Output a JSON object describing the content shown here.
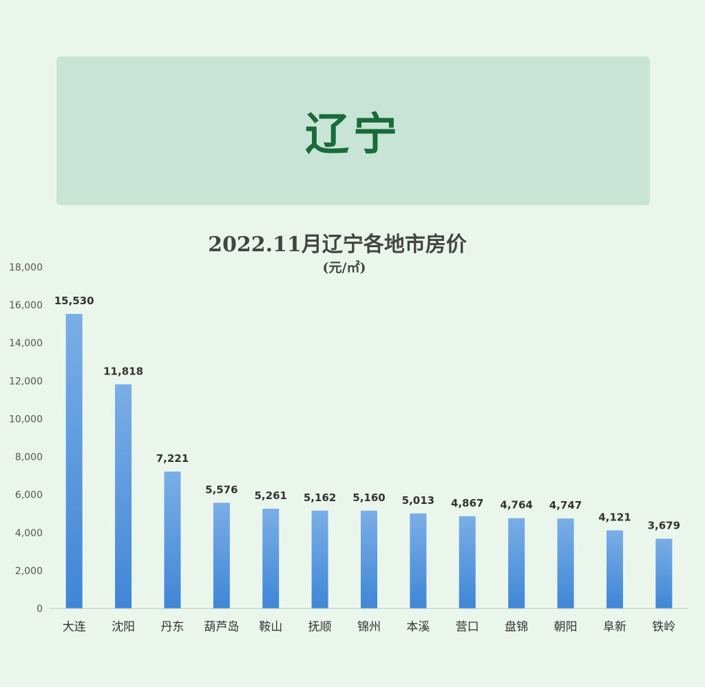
{
  "banner": {
    "title": "辽宁"
  },
  "colors": {
    "background": "#eaf5eb",
    "banner": "#c8e4d6",
    "banner_text": "#1a6b3a",
    "bar_top": "#7aaee6",
    "bar_bottom": "#3f86d6"
  },
  "chart_data": {
    "type": "bar",
    "title": "2022.11月辽宁各地市房价",
    "subtitle": "(元/㎡)",
    "categories": [
      "大连",
      "沈阳",
      "丹东",
      "葫芦岛",
      "鞍山",
      "抚顺",
      "锦州",
      "本溪",
      "营口",
      "盘锦",
      "朝阳",
      "阜新",
      "铁岭"
    ],
    "values": [
      15530,
      11818,
      7221,
      5576,
      5261,
      5162,
      5160,
      5013,
      4867,
      4764,
      4747,
      4121,
      3679
    ],
    "value_labels": [
      "15,530",
      "11,818",
      "7,221",
      "5,576",
      "5,261",
      "5,162",
      "5,160",
      "5,013",
      "4,867",
      "4,764",
      "4,747",
      "4,121",
      "3,679"
    ],
    "ylim": [
      0,
      18000
    ],
    "yticks": [
      0,
      2000,
      4000,
      6000,
      8000,
      10000,
      12000,
      14000,
      16000,
      18000
    ],
    "ytick_labels": [
      "0",
      "2,000",
      "4,000",
      "6,000",
      "8,000",
      "10,000",
      "12,000",
      "14,000",
      "16,000",
      "18,000"
    ],
    "grid": false,
    "legend": "none"
  }
}
